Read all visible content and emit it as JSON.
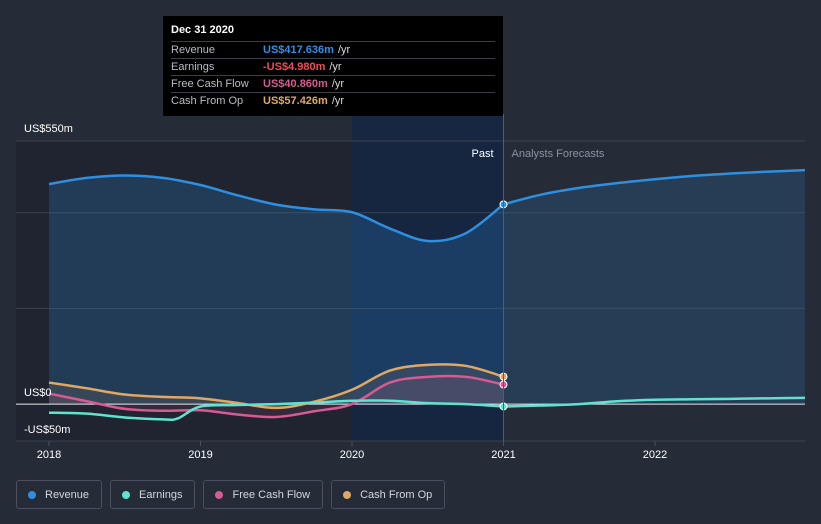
{
  "chart_data": {
    "type": "line",
    "x_unit": "year",
    "y_unit": "US$m",
    "xlim": [
      2018,
      2022.99
    ],
    "ylim": [
      -50,
      550
    ],
    "y_labels": [
      {
        "value": 550,
        "text": "US$550m"
      },
      {
        "value": 0,
        "text": "US$0"
      },
      {
        "value": -50,
        "text": "-US$50m"
      }
    ],
    "x_ticks": [
      {
        "value": 2018,
        "text": "2018"
      },
      {
        "value": 2019,
        "text": "2019"
      },
      {
        "value": 2020,
        "text": "2020"
      },
      {
        "value": 2021,
        "text": "2021"
      },
      {
        "value": 2022,
        "text": "2022"
      }
    ],
    "past_label": "Past",
    "forecast_label": "Analysts Forecasts",
    "divider_x": 2021,
    "highlight_range": [
      2020,
      2021
    ],
    "series": [
      {
        "name": "Revenue",
        "color": "#2e8fe0",
        "points": [
          [
            2018,
            460
          ],
          [
            2018.25,
            473
          ],
          [
            2018.5,
            478
          ],
          [
            2018.75,
            473
          ],
          [
            2019,
            458
          ],
          [
            2019.25,
            436
          ],
          [
            2019.5,
            417
          ],
          [
            2019.75,
            407
          ],
          [
            2020,
            401
          ],
          [
            2020.25,
            367
          ],
          [
            2020.5,
            341
          ],
          [
            2020.75,
            357
          ],
          [
            2021,
            417.6
          ]
        ],
        "forecast": [
          [
            2021,
            417.6
          ],
          [
            2021.25,
            438
          ],
          [
            2021.5,
            452
          ],
          [
            2021.75,
            462
          ],
          [
            2022,
            470
          ],
          [
            2022.25,
            477
          ],
          [
            2022.5,
            482
          ],
          [
            2022.75,
            486
          ],
          [
            2022.99,
            489
          ]
        ]
      },
      {
        "name": "Earnings",
        "color": "#5fe3cf",
        "points": [
          [
            2018,
            -18
          ],
          [
            2018.25,
            -20
          ],
          [
            2018.5,
            -28
          ],
          [
            2018.75,
            -32
          ],
          [
            2018.85,
            -30
          ],
          [
            2019,
            -5
          ],
          [
            2019.25,
            -2
          ],
          [
            2019.5,
            0
          ],
          [
            2019.75,
            3
          ],
          [
            2020,
            7
          ],
          [
            2020.25,
            7
          ],
          [
            2020.5,
            2
          ],
          [
            2020.75,
            0
          ],
          [
            2021,
            -5
          ]
        ],
        "forecast": [
          [
            2021,
            -5
          ],
          [
            2021.25,
            -3
          ],
          [
            2021.5,
            0
          ],
          [
            2021.75,
            6
          ],
          [
            2022,
            9
          ],
          [
            2022.25,
            10
          ],
          [
            2022.5,
            11
          ],
          [
            2022.75,
            12
          ],
          [
            2022.99,
            13
          ]
        ]
      },
      {
        "name": "Free Cash Flow",
        "color": "#d65a94",
        "points": [
          [
            2018,
            22
          ],
          [
            2018.25,
            6
          ],
          [
            2018.5,
            -10
          ],
          [
            2018.75,
            -14
          ],
          [
            2019,
            -13
          ],
          [
            2019.25,
            -22
          ],
          [
            2019.5,
            -27
          ],
          [
            2019.75,
            -15
          ],
          [
            2020,
            0
          ],
          [
            2020.25,
            45
          ],
          [
            2020.5,
            57
          ],
          [
            2020.75,
            57
          ],
          [
            2021,
            40.9
          ]
        ],
        "forecast": []
      },
      {
        "name": "Cash From Op",
        "color": "#e0a863",
        "points": [
          [
            2018,
            45
          ],
          [
            2018.25,
            33
          ],
          [
            2018.5,
            20
          ],
          [
            2018.75,
            15
          ],
          [
            2019,
            12
          ],
          [
            2019.25,
            2
          ],
          [
            2019.5,
            -8
          ],
          [
            2019.75,
            5
          ],
          [
            2020,
            30
          ],
          [
            2020.25,
            70
          ],
          [
            2020.5,
            82
          ],
          [
            2020.75,
            80
          ],
          [
            2021,
            57.4
          ]
        ],
        "forecast": []
      }
    ]
  },
  "tooltip": {
    "date": "Dec 31 2020",
    "rows": [
      {
        "label": "Revenue",
        "value": "US$417.636m",
        "color": "#2e8fe0",
        "suffix": "/yr"
      },
      {
        "label": "Earnings",
        "value": "-US$4.980m",
        "color": "#ee4b5b",
        "suffix": "/yr"
      },
      {
        "label": "Free Cash Flow",
        "value": "US$40.860m",
        "color": "#d65a94",
        "suffix": "/yr"
      },
      {
        "label": "Cash From Op",
        "value": "US$57.426m",
        "color": "#e0a863",
        "suffix": "/yr"
      }
    ]
  },
  "legend": [
    {
      "label": "Revenue",
      "color": "#2e8fe0"
    },
    {
      "label": "Earnings",
      "color": "#5fe3cf"
    },
    {
      "label": "Free Cash Flow",
      "color": "#d65a94"
    },
    {
      "label": "Cash From Op",
      "color": "#e0a863"
    }
  ]
}
